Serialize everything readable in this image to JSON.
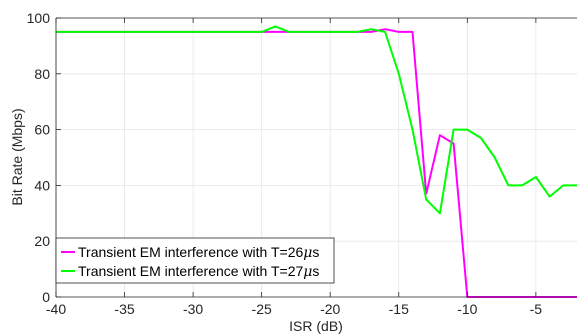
{
  "chart_data": {
    "type": "line",
    "title": "",
    "xlabel": "ISR (dB)",
    "ylabel": "Bit Rate (Mbps)",
    "xlim": [
      -40,
      -2
    ],
    "ylim": [
      0,
      100
    ],
    "xticks": [
      -40,
      -35,
      -30,
      -25,
      -20,
      -15,
      -10,
      -5
    ],
    "xtick_labels": [
      "-40",
      "-35",
      "-30",
      "-25",
      "-20",
      "-15",
      "-10",
      "-5"
    ],
    "yticks": [
      0,
      20,
      40,
      60,
      80,
      100
    ],
    "ytick_labels": [
      "0",
      "20",
      "40",
      "60",
      "80",
      "100"
    ],
    "grid": true,
    "legend_position": "bottom-left",
    "series": [
      {
        "name_prefix": "Transient EM interference with T=26",
        "name_mu": "μ",
        "name_suffix": "s",
        "color": "#ff00ff",
        "x": [
          -40,
          -25,
          -24,
          -23,
          -22,
          -21,
          -20,
          -19,
          -18,
          -17,
          -16,
          -15,
          -14,
          -13,
          -12,
          -11,
          -10,
          -9,
          -8,
          -7,
          -6,
          -5,
          -4,
          -3,
          -2
        ],
        "y": [
          95,
          95,
          95,
          95,
          95,
          95,
          95,
          95,
          95,
          95,
          96,
          95,
          95,
          37,
          58,
          55,
          0,
          0,
          0,
          0,
          0,
          0,
          0,
          0,
          0
        ]
      },
      {
        "name_prefix": "Transient EM interference with T=27",
        "name_mu": "μ",
        "name_suffix": "s",
        "color": "#00ff00",
        "x": [
          -40,
          -25,
          -24,
          -23,
          -22,
          -21,
          -20,
          -19,
          -18,
          -17,
          -16,
          -15,
          -14,
          -13,
          -12,
          -11,
          -10,
          -9,
          -8,
          -7,
          -6,
          -5,
          -4,
          -3,
          -2
        ],
        "y": [
          95,
          95,
          97,
          95,
          95,
          95,
          95,
          95,
          95,
          96,
          95,
          80,
          60,
          35,
          30,
          60,
          60,
          57,
          50,
          40,
          40,
          43,
          36,
          40,
          40
        ]
      }
    ]
  }
}
